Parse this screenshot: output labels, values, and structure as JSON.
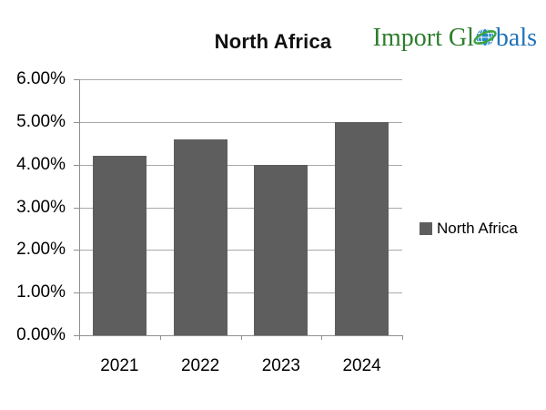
{
  "header": {
    "title": "North Africa"
  },
  "logo": {
    "text_left": "Import Gl",
    "text_right": "bals",
    "green": "#2e7d2c",
    "blue": "#1f73ba",
    "globe_blue": "#2386c8",
    "globe_swoosh_green": "#3ba43b"
  },
  "legend": {
    "label": "North Africa",
    "swatch_color": "#5e5e5e"
  },
  "chart_data": {
    "type": "bar",
    "title": "North Africa",
    "categories": [
      "2021",
      "2022",
      "2023",
      "2024"
    ],
    "series": [
      {
        "name": "North Africa",
        "values": [
          4.2,
          4.6,
          4.0,
          5.0
        ],
        "color": "#5e5e5e"
      }
    ],
    "xlabel": "",
    "ylabel": "",
    "ylim": [
      0,
      6
    ],
    "ytick_step": 1,
    "ytick_labels": [
      "0.00%",
      "1.00%",
      "2.00%",
      "3.00%",
      "4.00%",
      "5.00%",
      "6.00%"
    ],
    "grid": true,
    "legend_position": "right",
    "gridline_color": "#a9a9a9",
    "axis_color": "#8f8f8f"
  }
}
